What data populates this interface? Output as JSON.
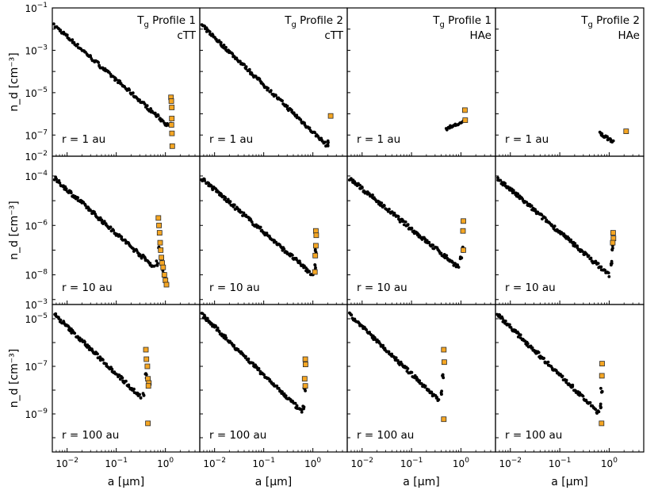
{
  "figure": {
    "xlabel": "a [μm]",
    "ylabel": "n_d [cm⁻³]",
    "colors": {
      "dots": "#000000",
      "squares": "#f5a623",
      "square_edge": "#2b2b2b",
      "frame": "#000000"
    }
  },
  "x_ticks": [
    {
      "exp": -2,
      "label": "10",
      "sup": "−2"
    },
    {
      "exp": -1,
      "label": "10",
      "sup": "−1"
    },
    {
      "exp": 0,
      "label": "10",
      "sup": "0"
    }
  ],
  "rows": [
    {
      "radius_label": "r = 1 au",
      "ylim_exp": [
        -8,
        -1
      ],
      "y_ticks": [
        {
          "exp": -1,
          "label": "10",
          "sup": "−1"
        },
        {
          "exp": -3,
          "label": "10",
          "sup": "−3"
        },
        {
          "exp": -5,
          "label": "10",
          "sup": "−5"
        },
        {
          "exp": -7,
          "label": "10",
          "sup": "−7"
        }
      ]
    },
    {
      "radius_label": "r = 10 au",
      "ylim_exp": [
        -9.2,
        -3.2
      ],
      "y_ticks": [
        {
          "exp": -4,
          "label": "10",
          "sup": "−4"
        },
        {
          "exp": -6,
          "label": "10",
          "sup": "−6"
        },
        {
          "exp": -8,
          "label": "10",
          "sup": "−8"
        }
      ]
    },
    {
      "radius_label": "r = 100 au",
      "ylim_exp": [
        -10.6,
        -4.4
      ],
      "y_ticks": [
        {
          "exp": -5,
          "label": "10",
          "sup": "−5"
        },
        {
          "exp": -7,
          "label": "10",
          "sup": "−7"
        },
        {
          "exp": -9,
          "label": "10",
          "sup": "−9"
        }
      ]
    }
  ],
  "inter_row_labels": [
    {
      "label": "10",
      "sup": "−2"
    },
    {
      "label": "10",
      "sup": "−3"
    }
  ],
  "columns": [
    {
      "profile": "T",
      "sub": "g",
      "profile_rest": " Profile 1",
      "star": "cTT"
    },
    {
      "profile": "T",
      "sub": "g",
      "profile_rest": " Profile 2",
      "star": "cTT"
    },
    {
      "profile": "T",
      "sub": "g",
      "profile_rest": " Profile 1",
      "star": "HAe"
    },
    {
      "profile": "T",
      "sub": "g",
      "profile_rest": " Profile 2",
      "star": "HAe"
    }
  ],
  "chart_data": {
    "type": "scatter",
    "x_scale": "log",
    "y_scale": "log",
    "xlim": [
      0.005,
      5.0
    ],
    "xlabel": "a [μm]",
    "ylabel": "n_d [cm⁻³]",
    "legend": "none",
    "grid": false,
    "panels": [
      {
        "row": 0,
        "col": 0,
        "radius": "r = 1 au",
        "column_title": "Tg Profile 1 / cTT",
        "dots": {
          "a_start": 0.0055,
          "a_end": 1.2,
          "nd_start": 0.015,
          "nd_end": 2.5e-07,
          "n": 130
        },
        "bumps": [
          {
            "a": 1.25,
            "nd": 3e-07
          }
        ],
        "squares": [
          {
            "a": 1.3,
            "nd": 6e-06
          },
          {
            "a": 1.32,
            "nd": 4e-06
          },
          {
            "a": 1.35,
            "nd": 2e-06
          },
          {
            "a": 1.35,
            "nd": 6e-07
          },
          {
            "a": 1.33,
            "nd": 3e-07
          },
          {
            "a": 1.36,
            "nd": 1.2e-07
          },
          {
            "a": 1.38,
            "nd": 3e-08
          }
        ]
      },
      {
        "row": 0,
        "col": 1,
        "radius": "r = 1 au",
        "column_title": "Tg Profile 2 / cTT",
        "dots": {
          "a_start": 0.0055,
          "a_end": 2.0,
          "nd_start": 0.015,
          "nd_end": 3e-08,
          "n": 150
        },
        "bumps": [
          {
            "a": 2.0,
            "nd": 4e-08
          }
        ],
        "squares": [
          {
            "a": 2.3,
            "nd": 8e-07
          }
        ]
      },
      {
        "row": 0,
        "col": 2,
        "radius": "r = 1 au",
        "column_title": "Tg Profile 1 / HAe",
        "dots": {
          "a_start": 0.5,
          "a_end": 1.1,
          "nd_start": 2e-07,
          "nd_end": 4e-07,
          "n": 18
        },
        "bumps": [],
        "squares": [
          {
            "a": 1.2,
            "nd": 1.5e-06
          },
          {
            "a": 1.22,
            "nd": 5e-07
          }
        ]
      },
      {
        "row": 0,
        "col": 3,
        "radius": "r = 1 au",
        "column_title": "Tg Profile 2 / HAe",
        "dots": {
          "a_start": 0.65,
          "a_end": 1.2,
          "nd_start": 1.2e-07,
          "nd_end": 5e-08,
          "n": 22
        },
        "bumps": [],
        "squares": [
          {
            "a": 2.2,
            "nd": 1.5e-07
          }
        ]
      },
      {
        "row": 1,
        "col": 0,
        "radius": "r = 10 au",
        "column_title": "Tg Profile 1 / cTT",
        "dots": {
          "a_start": 0.0055,
          "a_end": 0.6,
          "nd_start": 8e-05,
          "nd_end": 2e-08,
          "n": 130
        },
        "bumps": [
          {
            "a": 0.68,
            "nd": 3e-08
          },
          {
            "a": 0.75,
            "nd": 1.2e-07
          },
          {
            "a": 0.82,
            "nd": 5e-08
          },
          {
            "a": 0.9,
            "nd": 1.5e-08
          },
          {
            "a": 1.0,
            "nd": 7e-09
          }
        ],
        "squares": [
          {
            "a": 0.72,
            "nd": 2e-06
          },
          {
            "a": 0.74,
            "nd": 1e-06
          },
          {
            "a": 0.76,
            "nd": 5e-07
          },
          {
            "a": 0.78,
            "nd": 2e-07
          },
          {
            "a": 0.8,
            "nd": 1e-07
          },
          {
            "a": 0.83,
            "nd": 5e-08
          },
          {
            "a": 0.86,
            "nd": 3e-08
          },
          {
            "a": 0.9,
            "nd": 2e-08
          },
          {
            "a": 0.95,
            "nd": 1e-08
          },
          {
            "a": 1.0,
            "nd": 6e-09
          },
          {
            "a": 1.05,
            "nd": 4e-09
          }
        ]
      },
      {
        "row": 1,
        "col": 1,
        "radius": "r = 10 au",
        "column_title": "Tg Profile 2 / cTT",
        "dots": {
          "a_start": 0.0055,
          "a_end": 1.0,
          "nd_start": 8e-05,
          "nd_end": 1e-08,
          "n": 140
        },
        "bumps": [
          {
            "a": 1.1,
            "nd": 2e-08
          },
          {
            "a": 1.15,
            "nd": 8e-08
          }
        ],
        "squares": [
          {
            "a": 1.15,
            "nd": 6e-07
          },
          {
            "a": 1.17,
            "nd": 4e-07
          },
          {
            "a": 1.15,
            "nd": 1.5e-07
          },
          {
            "a": 1.12,
            "nd": 6e-08
          },
          {
            "a": 1.1,
            "nd": 1.3e-08
          }
        ]
      },
      {
        "row": 1,
        "col": 2,
        "radius": "r = 10 au",
        "column_title": "Tg Profile 1 / HAe",
        "dots": {
          "a_start": 0.0055,
          "a_end": 0.9,
          "nd_start": 8e-05,
          "nd_end": 2e-08,
          "n": 140
        },
        "bumps": [
          {
            "a": 1.0,
            "nd": 4e-08
          },
          {
            "a": 1.08,
            "nd": 1e-07
          }
        ],
        "squares": [
          {
            "a": 1.12,
            "nd": 1.5e-06
          },
          {
            "a": 1.1,
            "nd": 6e-07
          },
          {
            "a": 1.12,
            "nd": 1e-07
          }
        ]
      },
      {
        "row": 1,
        "col": 3,
        "radius": "r = 10 au",
        "column_title": "Tg Profile 2 / HAe",
        "dots": {
          "a_start": 0.0055,
          "a_end": 1.0,
          "nd_start": 8e-05,
          "nd_end": 1e-08,
          "n": 140
        },
        "bumps": [
          {
            "a": 1.1,
            "nd": 3e-08
          },
          {
            "a": 1.15,
            "nd": 1.2e-07
          }
        ],
        "squares": [
          {
            "a": 1.2,
            "nd": 5e-07
          },
          {
            "a": 1.22,
            "nd": 3e-07
          },
          {
            "a": 1.18,
            "nd": 2e-07
          }
        ]
      },
      {
        "row": 2,
        "col": 0,
        "radius": "r = 100 au",
        "column_title": "Tg Profile 1 / cTT",
        "dots": {
          "a_start": 0.0055,
          "a_end": 0.32,
          "nd_start": 1.5e-05,
          "nd_end": 5e-09,
          "n": 110
        },
        "bumps": [
          {
            "a": 0.36,
            "nd": 6e-09
          },
          {
            "a": 0.4,
            "nd": 4e-08
          }
        ],
        "squares": [
          {
            "a": 0.4,
            "nd": 5e-07
          },
          {
            "a": 0.41,
            "nd": 2e-07
          },
          {
            "a": 0.43,
            "nd": 1e-07
          },
          {
            "a": 0.44,
            "nd": 3e-08
          },
          {
            "a": 0.46,
            "nd": 2e-08
          },
          {
            "a": 0.45,
            "nd": 1.5e-08
          },
          {
            "a": 0.44,
            "nd": 4e-10
          }
        ]
      },
      {
        "row": 2,
        "col": 1,
        "radius": "r = 100 au",
        "column_title": "Tg Profile 2 / cTT",
        "dots": {
          "a_start": 0.0055,
          "a_end": 0.6,
          "nd_start": 1.5e-05,
          "nd_end": 1.2e-09,
          "n": 130
        },
        "bumps": [
          {
            "a": 0.65,
            "nd": 2e-09
          },
          {
            "a": 0.68,
            "nd": 1e-08
          }
        ],
        "squares": [
          {
            "a": 0.7,
            "nd": 2e-07
          },
          {
            "a": 0.71,
            "nd": 1.2e-07
          },
          {
            "a": 0.68,
            "nd": 3e-08
          },
          {
            "a": 0.7,
            "nd": 1.5e-08
          }
        ]
      },
      {
        "row": 2,
        "col": 2,
        "radius": "r = 100 au",
        "column_title": "Tg Profile 1 / HAe",
        "dots": {
          "a_start": 0.0055,
          "a_end": 0.35,
          "nd_start": 1.5e-05,
          "nd_end": 4e-09,
          "n": 115
        },
        "bumps": [
          {
            "a": 0.4,
            "nd": 8e-09
          },
          {
            "a": 0.43,
            "nd": 4e-08
          }
        ],
        "squares": [
          {
            "a": 0.45,
            "nd": 5e-07
          },
          {
            "a": 0.46,
            "nd": 1.5e-07
          },
          {
            "a": 0.45,
            "nd": 6e-10
          }
        ]
      },
      {
        "row": 2,
        "col": 3,
        "radius": "r = 100 au",
        "column_title": "Tg Profile 2 / HAe",
        "dots": {
          "a_start": 0.0055,
          "a_end": 0.62,
          "nd_start": 1.5e-05,
          "nd_end": 1.1e-09,
          "n": 130
        },
        "bumps": [
          {
            "a": 0.66,
            "nd": 2e-09
          },
          {
            "a": 0.7,
            "nd": 1e-08
          }
        ],
        "squares": [
          {
            "a": 0.72,
            "nd": 1.3e-07
          },
          {
            "a": 0.71,
            "nd": 4e-08
          },
          {
            "a": 0.7,
            "nd": 4e-10
          }
        ]
      }
    ]
  }
}
